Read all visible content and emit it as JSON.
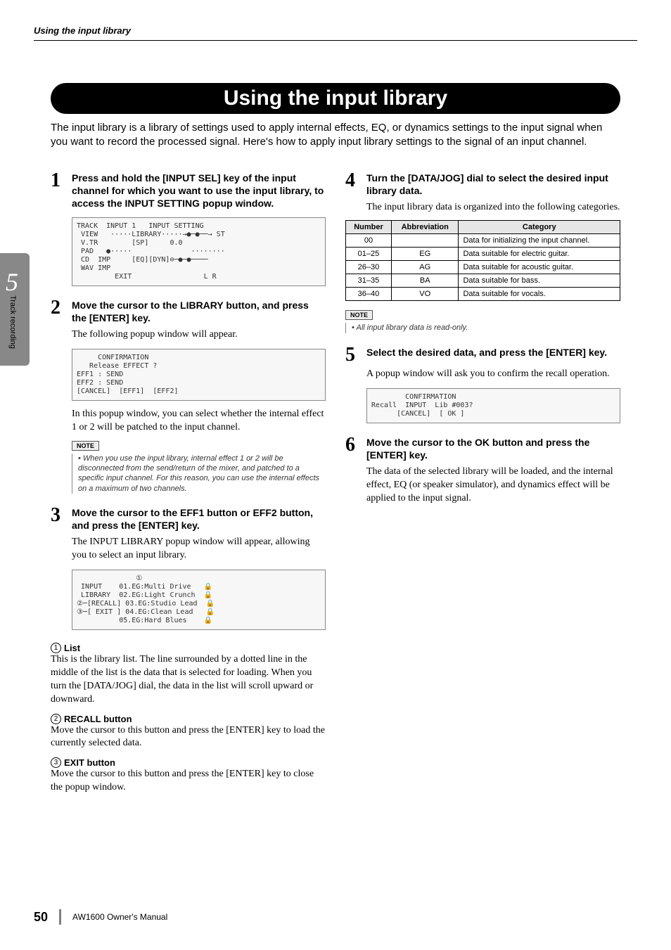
{
  "header": {
    "section": "Using the input library"
  },
  "side": {
    "chapter": "5",
    "label": "Track recording"
  },
  "title": "Using the input library",
  "intro": "The input library is a library of settings used to apply internal effects, EQ, or dynamics settings to the input signal when you want to record the processed signal. Here's how to apply input library settings to the signal of an input channel.",
  "steps": {
    "left": [
      {
        "n": "1",
        "title": "Press and hold the [INPUT SEL] key of the input channel for which you want to use the input library, to access the INPUT SETTING popup window.",
        "body": "",
        "fig": "TRACK  INPUT 1   INPUT SETTING\n VIEW   ·····LIBRARY·····→●─●──→ ST\n V.TR        [SP]     0.0\n PAD   ●·····              ········\n CD  IMP     [EQ][DYN]⊖─●─●────\n WAV IMP\n         EXIT                 L R"
      },
      {
        "n": "2",
        "title": "Move the cursor to the LIBRARY button, and press the [ENTER] key.",
        "body": "The following popup window will appear.",
        "fig": "     CONFIRMATION\n   Release EFFECT ?\nEFF1 : SEND\nEFF2 : SEND\n[CANCEL]  [EFF1]  [EFF2]",
        "note": "When you use the input library, internal effect 1 or 2 will be disconnected from the send/return of the mixer, and patched to a specific input channel. For this reason, you can use the internal effects on a maximum of two channels.",
        "body2": "In this popup window, you can select whether the internal effect 1 or 2 will be patched to the input channel."
      },
      {
        "n": "3",
        "title": "Move the cursor to the EFF1 button or EFF2 button, and press the [ENTER] key.",
        "body": "The INPUT LIBRARY popup window will appear, allowing you to select an input library.",
        "fig": "              ①\n INPUT    01.EG:Multi Drive   🔒\n LIBRARY  02.EG:Light Crunch  🔒\n②─[RECALL] 03.EG:Studio Lead  🔒\n③─[ EXIT ] 04.EG:Clean Lead   🔒\n          05.EG:Hard Blues    🔒"
      }
    ],
    "right": [
      {
        "n": "4",
        "title": "Turn the [DATA/JOG] dial to select the desired input library data.",
        "body": "The input library data is organized into the following categories.",
        "note": "All input library data is read-only."
      },
      {
        "n": "5",
        "title": "Select the desired data, and press the [ENTER] key.",
        "body": "A popup window will ask you to confirm the recall operation.",
        "fig": "        CONFIRMATION\nRecall  INPUT  Lib #003?\n      [CANCEL]  [ OK ]"
      },
      {
        "n": "6",
        "title": "Move the cursor to the OK button and press the [ENTER] key.",
        "body": "The data of the selected library will be loaded, and the internal effect, EQ (or speaker simulator), and dynamics effect will be applied to the input signal."
      }
    ]
  },
  "annotations": [
    {
      "n": "1",
      "label": "List",
      "body": "This is the library list. The line surrounded by a dotted line in the middle of the list is the data that is selected for loading. When you turn the [DATA/JOG] dial, the data in the list will scroll upward or downward."
    },
    {
      "n": "2",
      "label": "RECALL button",
      "body": "Move the cursor to this button and press the [ENTER] key to load the currently selected data."
    },
    {
      "n": "3",
      "label": "EXIT button",
      "body": "Move the cursor to this button and press the [ENTER] key to close the popup window."
    }
  ],
  "table": {
    "headers": [
      "Number",
      "Abbreviation",
      "Category"
    ],
    "rows": [
      [
        "00",
        "",
        "Data for initializing the input channel."
      ],
      [
        "01–25",
        "EG",
        "Data suitable for electric guitar."
      ],
      [
        "26–30",
        "AG",
        "Data suitable for acoustic guitar."
      ],
      [
        "31–35",
        "BA",
        "Data suitable for bass."
      ],
      [
        "36–40",
        "VO",
        "Data suitable for vocals."
      ]
    ]
  },
  "note_label": "NOTE",
  "footer": {
    "page": "50",
    "manual": "AW1600  Owner's Manual"
  }
}
